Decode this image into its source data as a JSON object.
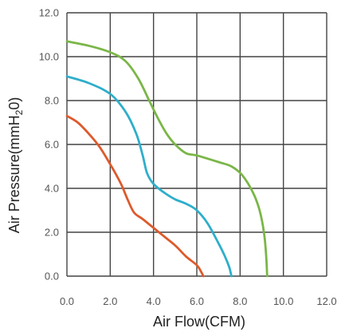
{
  "chart_data": {
    "type": "line",
    "xlabel": "Air Flow(CFM)",
    "ylabel": {
      "prefix": "Air Pressure(mmH",
      "subscript": "2",
      "suffix": "0)"
    },
    "x_ticks": [
      "0.0",
      "2.0",
      "4.0",
      "6.0",
      "8.0",
      "10.0",
      "12.0"
    ],
    "y_ticks": [
      "0.0",
      "2.0",
      "4.0",
      "6.0",
      "8.0",
      "10.0",
      "12.0"
    ],
    "xlim": [
      0,
      12
    ],
    "ylim": [
      0,
      12
    ],
    "grid": true,
    "legend": "none",
    "series": [
      {
        "color": "#7ab648",
        "x": [
          0.0,
          1.0,
          2.0,
          2.7,
          3.3,
          3.8,
          4.2,
          4.6,
          5.0,
          5.5,
          6.0,
          7.0,
          7.6,
          8.1,
          8.6,
          8.9,
          9.1,
          9.2,
          9.25
        ],
        "y": [
          10.7,
          10.5,
          10.2,
          9.8,
          9.0,
          8.0,
          7.2,
          6.5,
          6.0,
          5.6,
          5.5,
          5.2,
          5.0,
          4.6,
          3.8,
          3.0,
          2.0,
          1.0,
          0.0
        ]
      },
      {
        "color": "#2eaecb",
        "x": [
          0.0,
          1.0,
          2.0,
          2.7,
          3.2,
          3.5,
          3.7,
          4.0,
          4.5,
          5.0,
          5.5,
          6.0,
          6.5,
          7.0,
          7.3,
          7.5,
          7.6
        ],
        "y": [
          9.1,
          8.8,
          8.3,
          7.5,
          6.5,
          5.5,
          4.7,
          4.2,
          3.8,
          3.5,
          3.3,
          3.0,
          2.4,
          1.5,
          0.9,
          0.4,
          0.0
        ]
      },
      {
        "color": "#dd5a2c",
        "x": [
          0.0,
          0.5,
          1.0,
          1.5,
          2.0,
          2.5,
          2.8,
          3.1,
          3.5,
          4.0,
          4.5,
          5.0,
          5.5,
          6.0,
          6.2,
          6.3
        ],
        "y": [
          7.3,
          7.0,
          6.5,
          5.9,
          5.1,
          4.2,
          3.5,
          2.9,
          2.6,
          2.2,
          1.8,
          1.4,
          0.9,
          0.5,
          0.2,
          0.0
        ]
      }
    ]
  }
}
